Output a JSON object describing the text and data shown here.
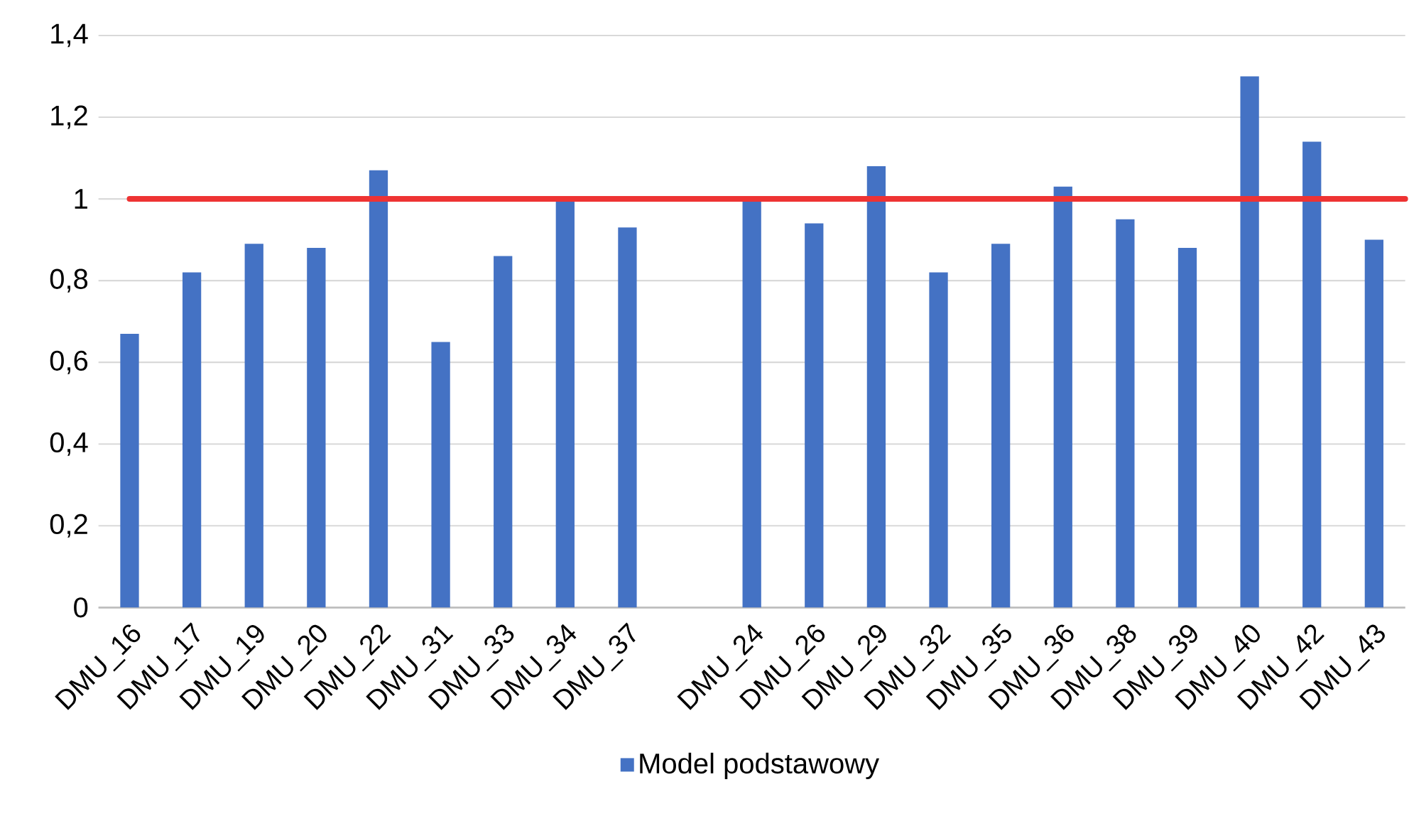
{
  "chart_data": {
    "type": "bar",
    "categories": [
      "DMU_16",
      "DMU_17",
      "DMU_19",
      "DMU_20",
      "DMU_22",
      "DMU_31",
      "DMU_33",
      "DMU_34",
      "DMU_37",
      null,
      "DMU_24",
      "DMU_26",
      "DMU_29",
      "DMU_32",
      "DMU_35",
      "DMU_36",
      "DMU_38",
      "DMU_39",
      "DMU_40",
      "DMU_42",
      "DMU_43"
    ],
    "series": [
      {
        "name": "Model podstawowy",
        "color": "#4472c4",
        "values": [
          0.67,
          0.82,
          0.89,
          0.88,
          1.07,
          0.65,
          0.86,
          1.0,
          0.93,
          null,
          1.0,
          0.94,
          1.08,
          0.82,
          0.89,
          1.03,
          0.95,
          0.88,
          1.3,
          1.14,
          0.9
        ]
      }
    ],
    "ylim": [
      0,
      1.4
    ],
    "yticks": [
      0,
      {
        "value": 0.2,
        "label": "0,2"
      },
      {
        "value": 0.4,
        "label": "0,4"
      },
      {
        "value": 0.6,
        "label": "0,6"
      },
      {
        "value": 0.8,
        "label": "0,8"
      },
      1,
      {
        "value": 1.2,
        "label": "1,2"
      },
      {
        "value": 1.4,
        "label": "1,4"
      }
    ],
    "grid": "y",
    "legend": "bottom",
    "ref_lines": [
      {
        "axis": "y",
        "value": 1,
        "color": "#ee3333"
      }
    ]
  }
}
